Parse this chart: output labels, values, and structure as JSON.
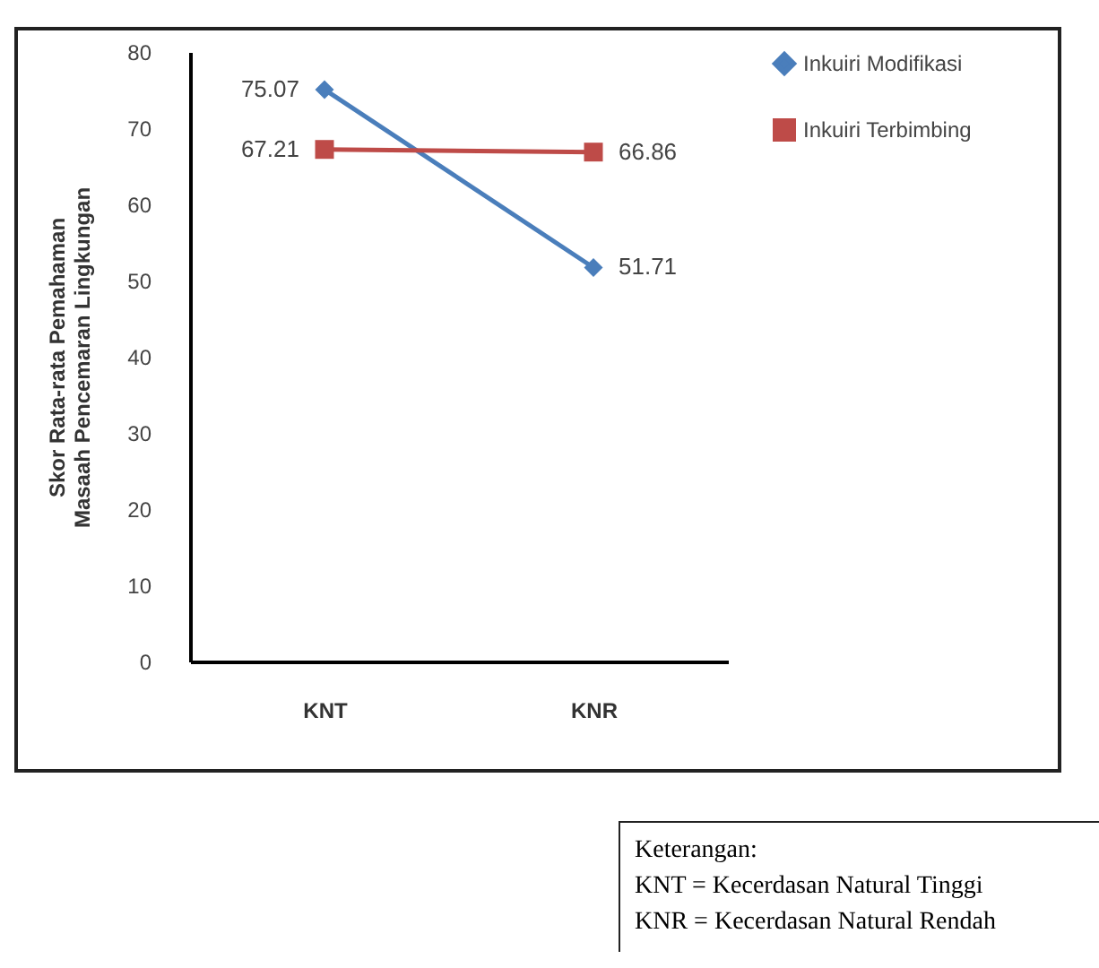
{
  "chart_data": {
    "type": "line",
    "ylabel": "Skor Rata-rata Pemahaman Masaah Pencemaran Lingkungan",
    "categories": [
      "KNT",
      "KNR"
    ],
    "series": [
      {
        "name": "Inkuiri Modifikasi",
        "color": "#4a7ebb",
        "marker": "diamond",
        "values": [
          75.07,
          51.71
        ]
      },
      {
        "name": "Inkuiri Terbimbing",
        "color": "#be4b48",
        "marker": "square",
        "values": [
          67.21,
          66.86
        ]
      }
    ],
    "ylim": [
      0,
      80
    ],
    "yticks": [
      0,
      10,
      20,
      30,
      40,
      50,
      60,
      70,
      80
    ],
    "grid": false,
    "legend": "right",
    "data_labels": true,
    "annotations": [
      "Keterangan:",
      "KNT = Kecerdasan Natural Tinggi",
      "KNR = Kecerdasan Natural Rendah"
    ]
  }
}
